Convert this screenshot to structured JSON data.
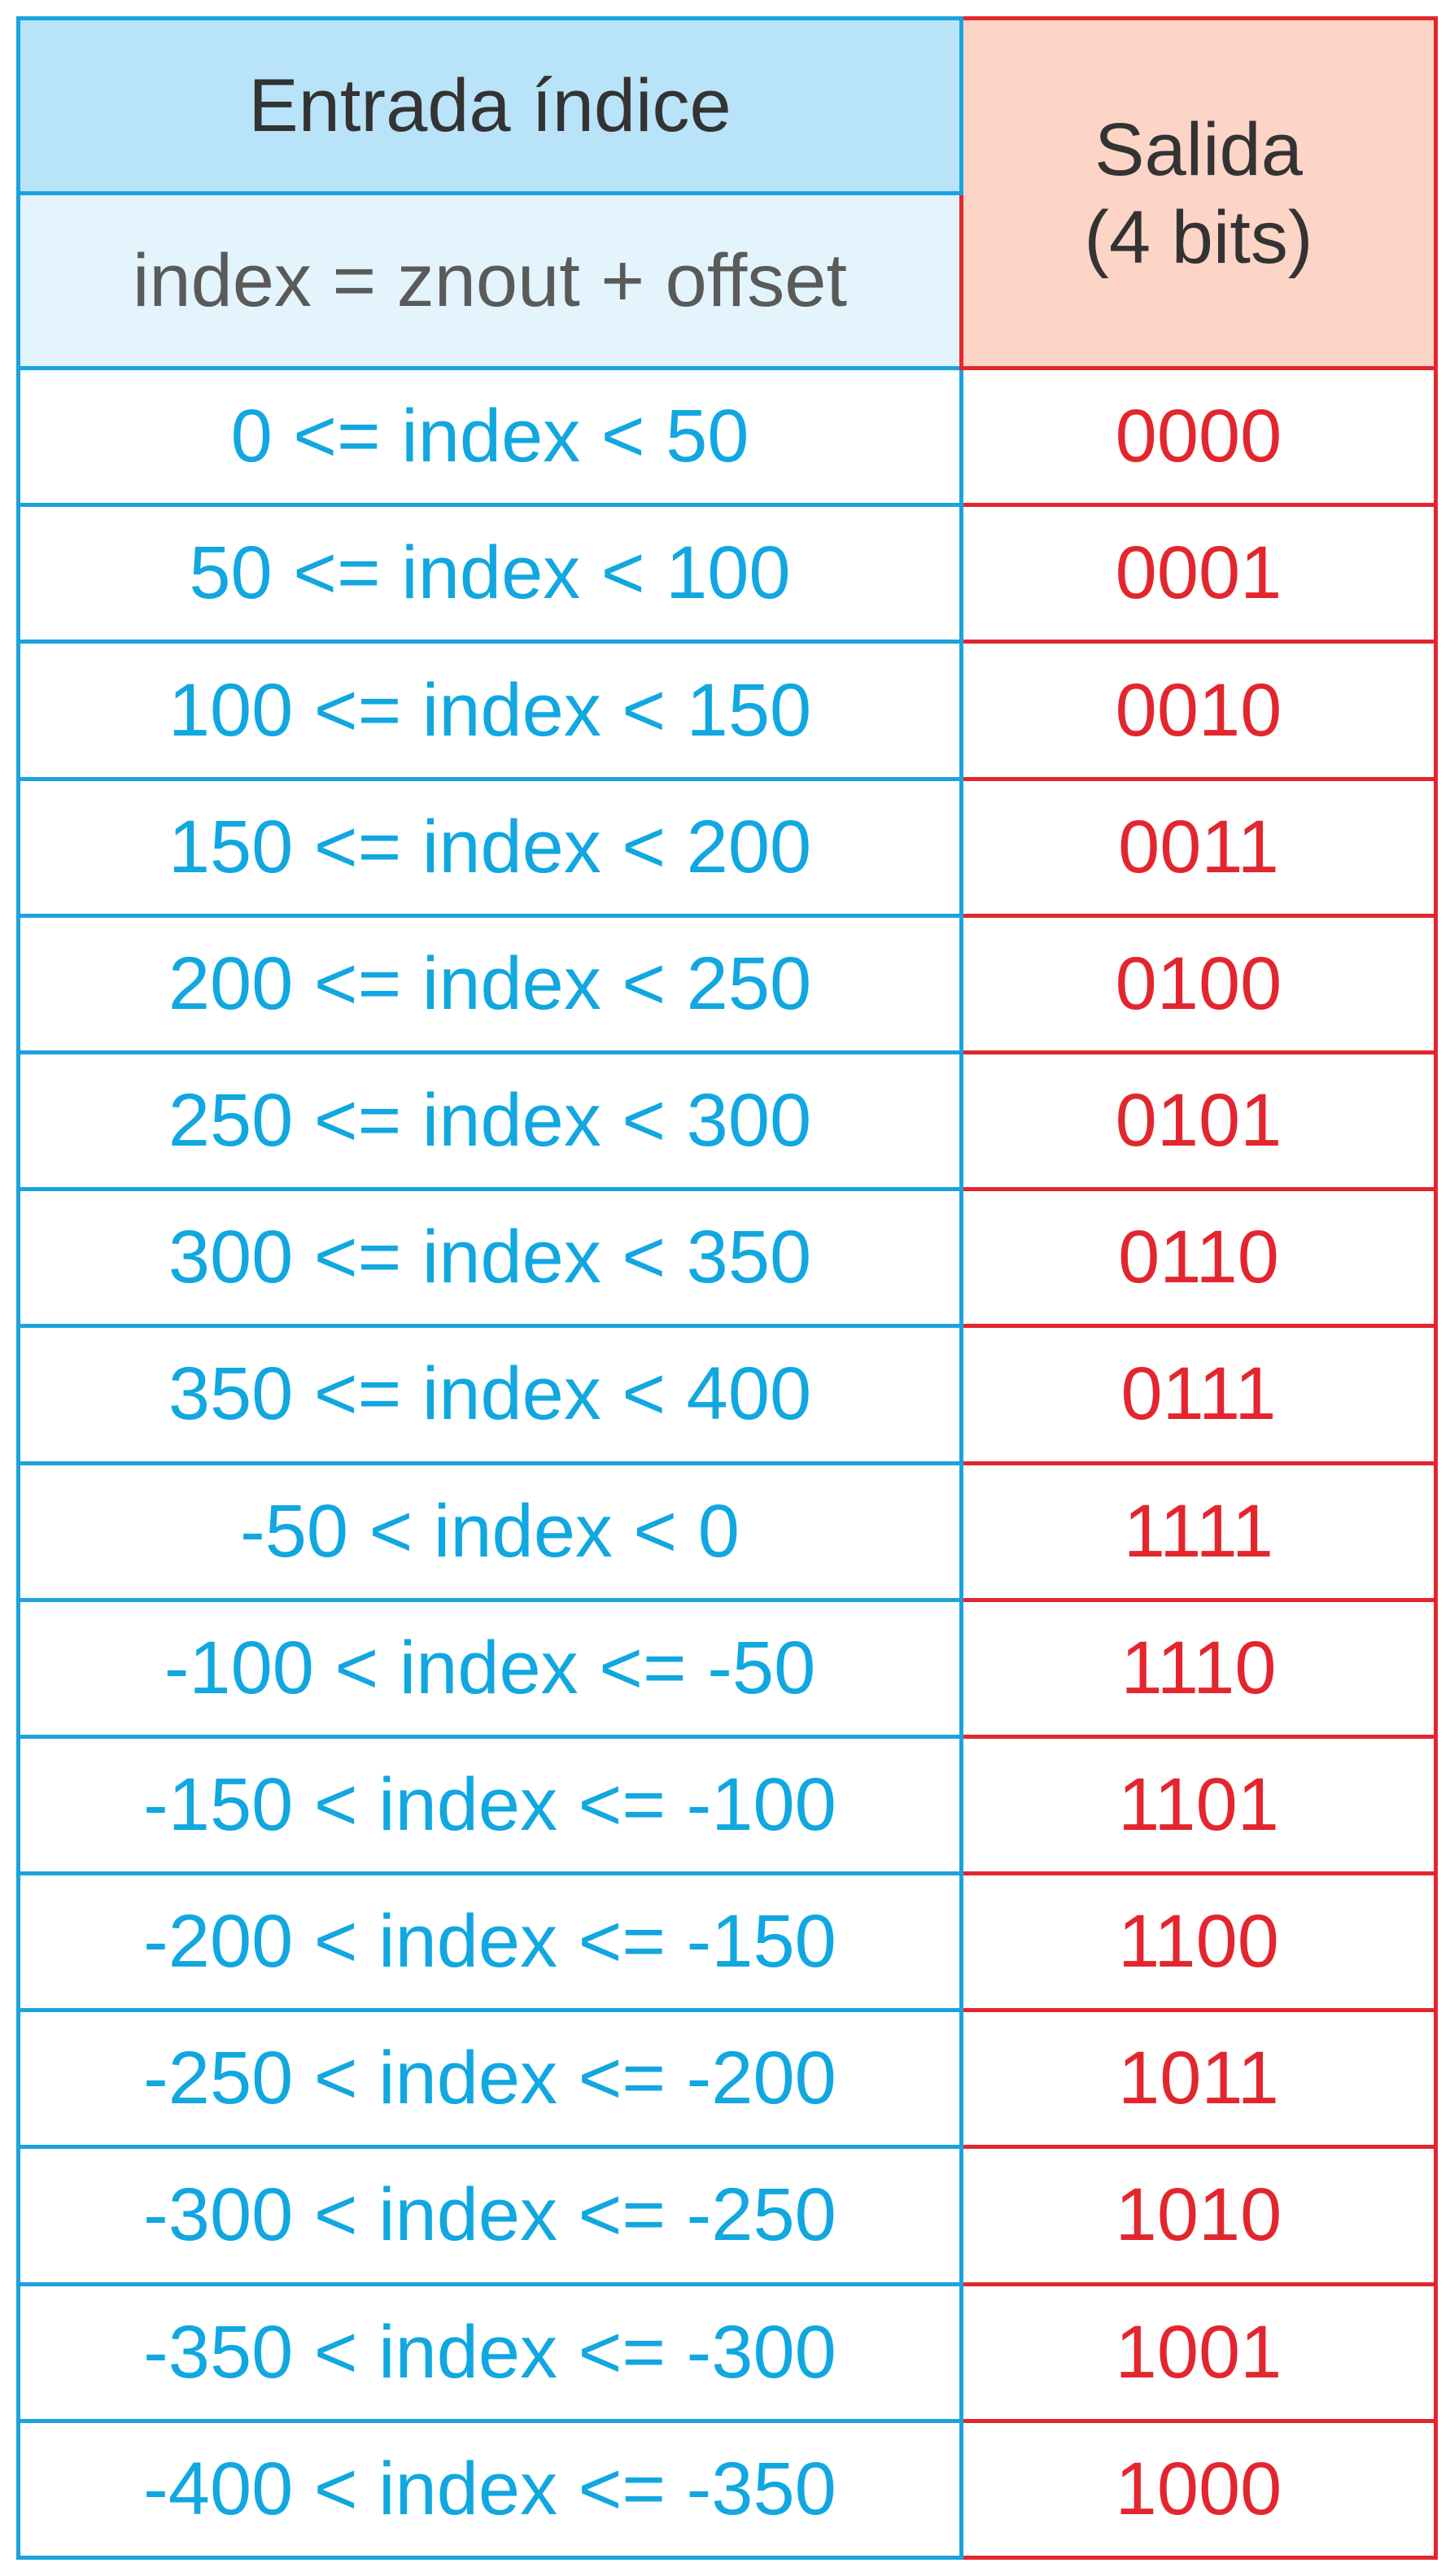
{
  "header": {
    "input_title": "Entrada índice",
    "input_formula": "index = znout + offset",
    "output_title_line1": "Salida",
    "output_title_line2": "(4 bits)"
  },
  "rows": [
    {
      "input": "0 <= index < 50",
      "output": "0000"
    },
    {
      "input": "50 <= index < 100",
      "output": "0001"
    },
    {
      "input": "100 <= index < 150",
      "output": "0010"
    },
    {
      "input": "150 <= index < 200",
      "output": "0011"
    },
    {
      "input": "200 <= index < 250",
      "output": "0100"
    },
    {
      "input": "250 <= index < 300",
      "output": "0101"
    },
    {
      "input": "300 <= index < 350",
      "output": "0110"
    },
    {
      "input": "350 <= index < 400",
      "output": "0111"
    },
    {
      "input": "-50 < index < 0",
      "output": "1111"
    },
    {
      "input": "-100 < index <= -50",
      "output": "1110"
    },
    {
      "input": "-150 < index <= -100",
      "output": "1101"
    },
    {
      "input": "-200 < index <= -150",
      "output": "1100"
    },
    {
      "input": "-250 < index <= -200",
      "output": "1011"
    },
    {
      "input": "-300 < index <= -250",
      "output": "1010"
    },
    {
      "input": "-350 < index <= -300",
      "output": "1001"
    },
    {
      "input": "-400 < index <= -350",
      "output": "1000"
    }
  ],
  "colors": {
    "input_border": "#1ba3dd",
    "input_text": "#11a7e0",
    "input_header_fill": "#b9e3f8",
    "input_subheader_fill": "#e3f4fd",
    "output_border": "#e3262e",
    "output_text": "#e3262e",
    "output_header_fill": "#fdd5c6"
  }
}
